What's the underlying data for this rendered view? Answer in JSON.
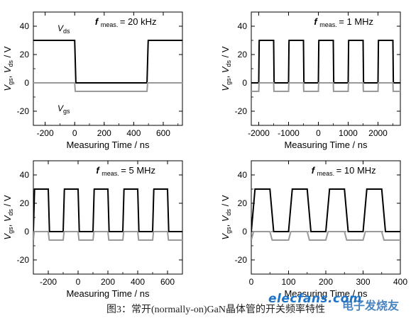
{
  "figure": {
    "caption": "图3：常开(normally-on)GaN晶体管的开关频率特性",
    "watermark_logo": "elecfans.com",
    "watermark_cn": "电子发烧友"
  },
  "chart_data": [
    {
      "type": "line",
      "annotation_prefix": "f",
      "annotation_sub": "meas.",
      "annotation_value": "= 20 kHz",
      "xlabel": "Measuring Time / ns",
      "ylabel": "V<sub>gs</sub>, V<sub>ds</sub> / V",
      "xlim": [
        -280,
        730
      ],
      "ylim": [
        -30,
        50
      ],
      "xticks": [
        -200,
        0,
        200,
        400,
        600
      ],
      "xticklabels": [
        "-200",
        "0",
        "200",
        "400",
        "600"
      ],
      "yticks": [
        -20,
        0,
        20,
        40
      ],
      "yticklabels": [
        "-20",
        "0",
        "20",
        "40"
      ],
      "reference_line": 0,
      "series": [
        {
          "name": "Vds",
          "label_main": "V",
          "label_sub": "ds",
          "color": "#000000",
          "high": 30,
          "low": 0,
          "rise_ns": 8,
          "fall_ns": 8,
          "edges": [
            0,
            490
          ]
        },
        {
          "name": "Vgs",
          "label_main": "V",
          "label_sub": "gs",
          "color": "#999999",
          "high": 0,
          "low": -6,
          "rise_ns": 4,
          "fall_ns": 4,
          "edges": [
            0,
            490
          ]
        }
      ]
    },
    {
      "type": "line",
      "annotation_prefix": "f",
      "annotation_sub": "meas.",
      "annotation_value": "= 1 MHz",
      "xlabel": "Measuring Time / ns",
      "ylabel": "V<sub>gs</sub>, V<sub>ds</sub> / V",
      "xlim": [
        -2250,
        2750
      ],
      "ylim": [
        -30,
        50
      ],
      "xticks": [
        -2000,
        -1000,
        0,
        1000,
        2000
      ],
      "xticklabels": [
        "-2000",
        "-1000",
        "0",
        "1000",
        "2000"
      ],
      "yticks": [
        -20,
        0,
        20,
        40
      ],
      "yticklabels": [
        "-20",
        "0",
        "20",
        "40"
      ],
      "reference_line": 0,
      "series": [
        {
          "name": "Vds",
          "color": "#000000",
          "high": 30,
          "low": 0,
          "period_ns": 1000,
          "duty": 0.5,
          "phase_ns": -2000,
          "rise_ns": 15,
          "fall_ns": 15
        },
        {
          "name": "Vgs",
          "color": "#999999",
          "high": 0,
          "low": -6,
          "period_ns": 1000,
          "duty": 0.5,
          "phase_ns": -2000,
          "rise_ns": 10,
          "fall_ns": 10
        }
      ]
    },
    {
      "type": "line",
      "annotation_prefix": "f",
      "annotation_sub": "meas.",
      "annotation_value": "= 5 MHz",
      "xlabel": "Measuring Time / ns",
      "ylabel": "V<sub>gs</sub>, V<sub>ds</sub> / V",
      "xlim": [
        -300,
        700
      ],
      "ylim": [
        -30,
        50
      ],
      "xticks": [
        -200,
        0,
        200,
        400,
        600
      ],
      "xticklabels": [
        "-200",
        "0",
        "200",
        "400",
        "600"
      ],
      "yticks": [
        -20,
        0,
        20,
        40
      ],
      "yticklabels": [
        "-20",
        "0",
        "20",
        "40"
      ],
      "reference_line": 0,
      "series": [
        {
          "name": "Vds",
          "color": "#000000",
          "high": 30,
          "low": 0,
          "period_ns": 200,
          "duty": 0.5,
          "phase_ns": -300,
          "rise_ns": 8,
          "fall_ns": 8
        },
        {
          "name": "Vgs",
          "color": "#999999",
          "high": 0,
          "low": -6,
          "period_ns": 200,
          "duty": 0.5,
          "phase_ns": -300,
          "rise_ns": 6,
          "fall_ns": 6
        }
      ]
    },
    {
      "type": "line",
      "annotation_prefix": "f",
      "annotation_sub": "meas.",
      "annotation_value": "= 10 MHz",
      "xlabel": "Measuring Time / ns",
      "ylabel": "V<sub>gs</sub>, V<sub>ds</sub> / V",
      "xlim": [
        0,
        400
      ],
      "ylim": [
        -30,
        50
      ],
      "xticks": [
        0,
        100,
        200,
        300,
        400
      ],
      "xticklabels": [
        "0",
        "100",
        "200",
        "300",
        "400"
      ],
      "yticks": [
        -20,
        0,
        20,
        40
      ],
      "yticklabels": [
        "-20",
        "0",
        "20",
        "40"
      ],
      "reference_line": 0,
      "series": [
        {
          "name": "Vds",
          "color": "#000000",
          "high": 30,
          "low": 0,
          "period_ns": 100,
          "duty": 0.5,
          "phase_ns": 0,
          "rise_ns": 10,
          "fall_ns": 10
        },
        {
          "name": "Vgs",
          "color": "#999999",
          "high": 0,
          "low": -6,
          "period_ns": 100,
          "duty": 0.5,
          "phase_ns": 0,
          "rise_ns": 6,
          "fall_ns": 6
        }
      ]
    }
  ]
}
